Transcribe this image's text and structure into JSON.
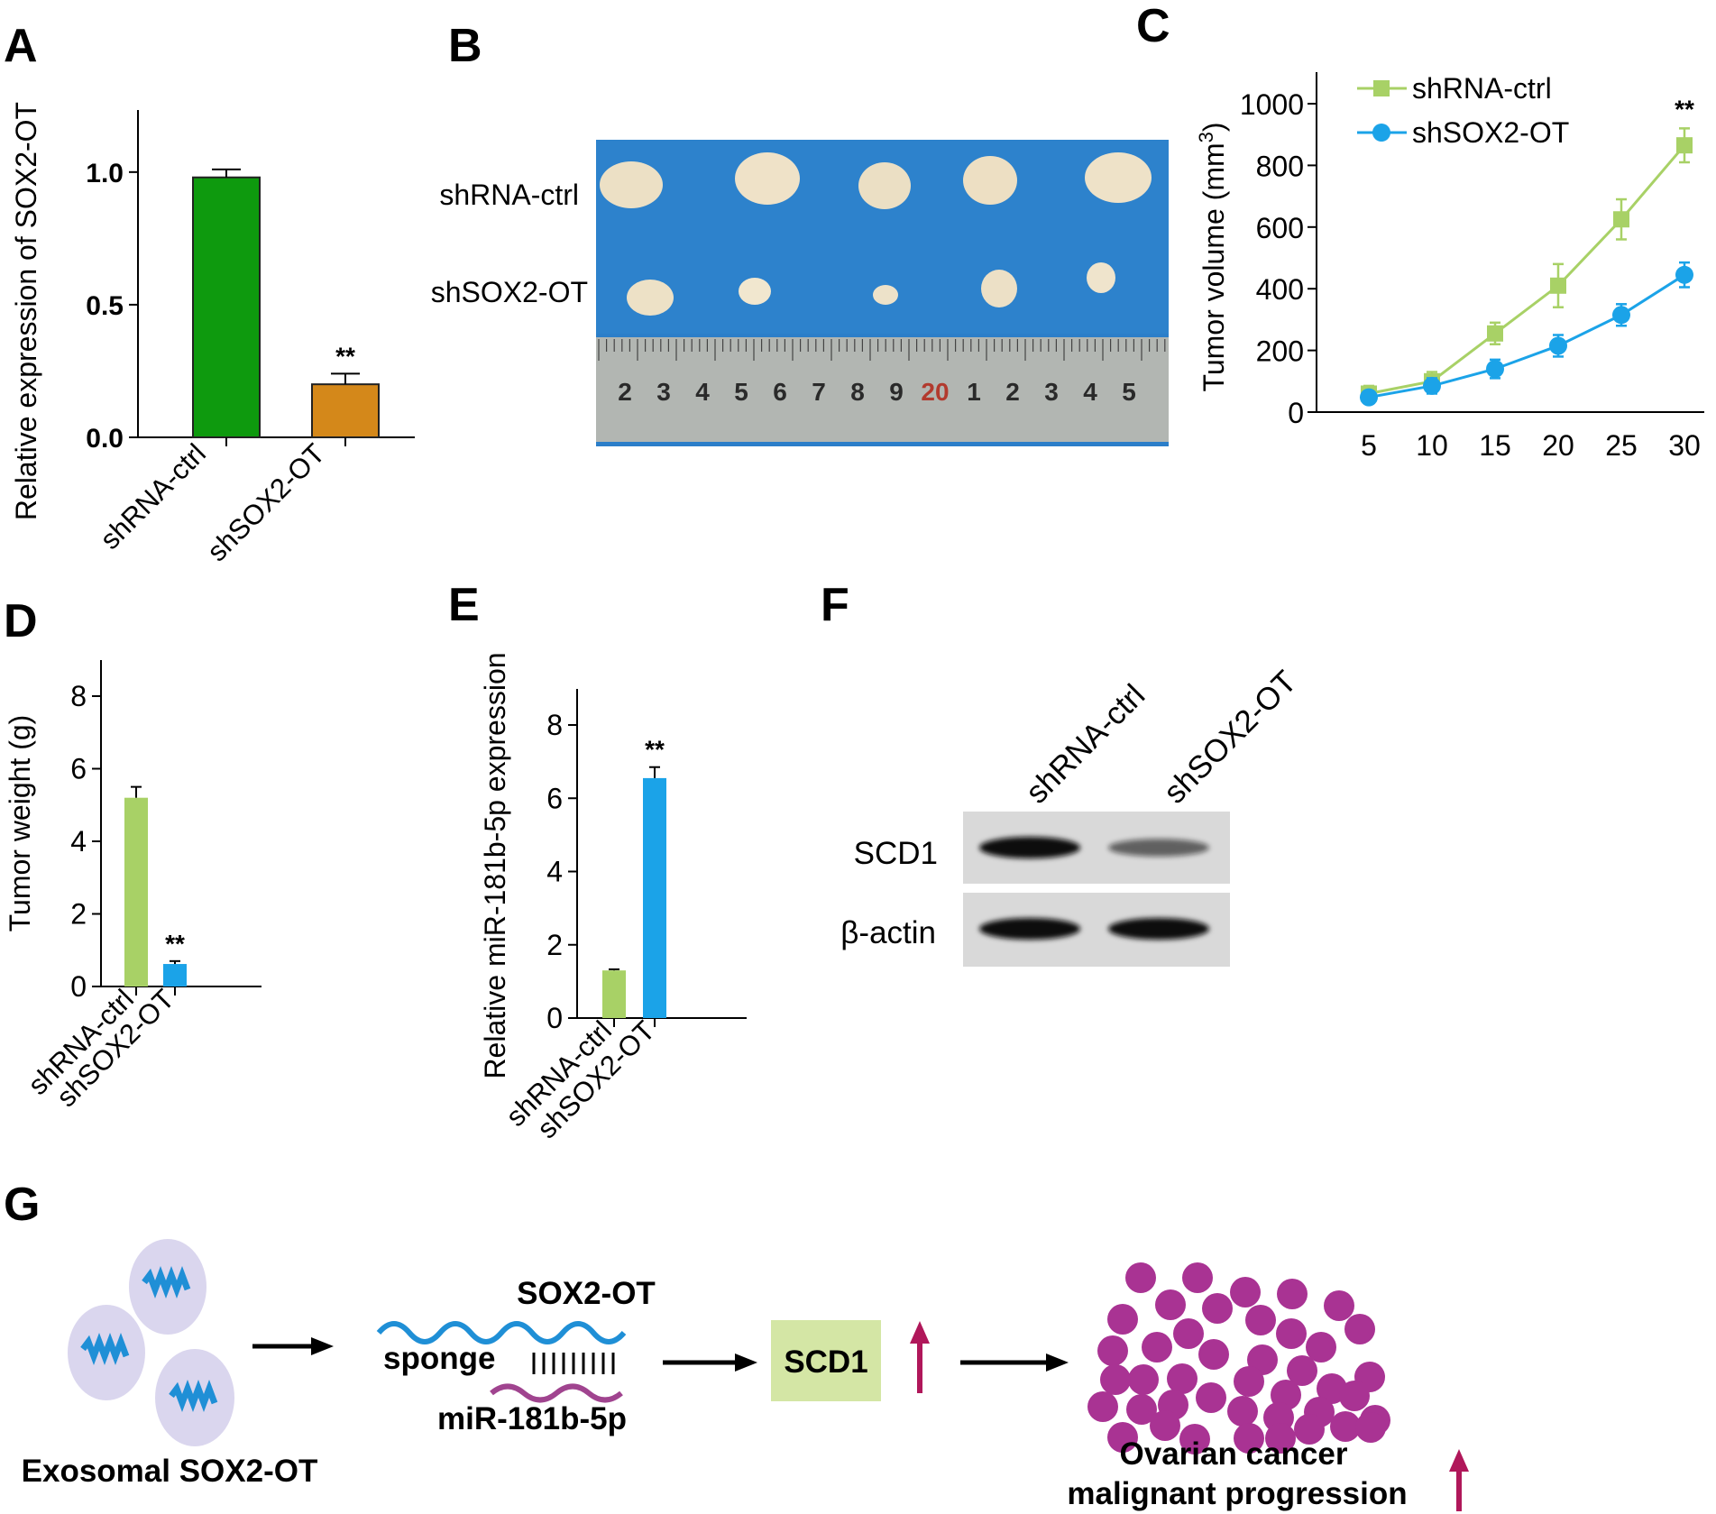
{
  "panels": {
    "A": "A",
    "B": "B",
    "C": "C",
    "D": "D",
    "E": "E",
    "F": "F",
    "G": "G"
  },
  "panel_b": {
    "rows": [
      "shRNA-ctrl",
      "shSOX2-OT"
    ],
    "ruler_marks": [
      "2",
      "3",
      "4",
      "5",
      "6",
      "7",
      "8",
      "9",
      "20",
      "1",
      "2",
      "3",
      "4",
      "5"
    ]
  },
  "panel_f": {
    "lanes": [
      "shRNA-ctrl",
      "shSOX2-OT"
    ],
    "rows": [
      "SCD1",
      "β-actin"
    ],
    "band_intensity": {
      "SCD1": [
        1.0,
        0.45
      ],
      "β-actin": [
        1.0,
        1.0
      ]
    }
  },
  "panel_g": {
    "source": "Exosomal SOX2-OT",
    "lnc": "SOX2-OT",
    "sponge": "sponge",
    "mirna": "miR-181b-5p",
    "target": "SCD1",
    "outcome_line1": "Ovarian cancer",
    "outcome_line2": "malignant  progression",
    "colors": {
      "wave": "#1f8fd6",
      "mirna": "#a0448f",
      "box": "#d4e6a5",
      "arrow_up": "#b0175a",
      "cell": "#a93393",
      "vesicle": "#dad6ee"
    }
  },
  "chart_data": [
    {
      "id": "A",
      "type": "bar",
      "categories": [
        "shRNA-ctrl",
        "shSOX2-OT"
      ],
      "values": [
        0.98,
        0.2
      ],
      "errors": [
        0.03,
        0.04
      ],
      "colors": [
        "#0e9a0e",
        "#d4881a"
      ],
      "significance": [
        "",
        "**"
      ],
      "ylabel": "Relative expression of SOX2-OT",
      "yticks": [
        "0.0",
        "0.5",
        "1.0"
      ],
      "ylim": [
        0,
        1.2
      ]
    },
    {
      "id": "C",
      "type": "line",
      "x": [
        5,
        10,
        15,
        20,
        25,
        30
      ],
      "series": [
        {
          "name": "shRNA-ctrl",
          "values": [
            60,
            100,
            255,
            410,
            625,
            865
          ],
          "errors": [
            25,
            30,
            35,
            70,
            65,
            55
          ],
          "color": "#a8d166",
          "marker": "square"
        },
        {
          "name": "shSOX2-OT",
          "values": [
            48,
            85,
            140,
            215,
            315,
            445
          ],
          "errors": [
            20,
            25,
            30,
            35,
            35,
            40
          ],
          "color": "#1ba3e8",
          "marker": "circle"
        }
      ],
      "significance": "**",
      "ylabel": "Tumor volume (mm",
      "ylabel_sup": "3",
      "ylabel_end": ")",
      "yticks": [
        "0",
        "200",
        "400",
        "600",
        "800",
        "1000"
      ],
      "xticks": [
        "5",
        "10",
        "15",
        "20",
        "25",
        "30"
      ],
      "ylim": [
        0,
        1000
      ],
      "xlim": [
        5,
        30
      ],
      "legend": "top-left"
    },
    {
      "id": "D",
      "type": "bar",
      "categories": [
        "shRNA-ctrl",
        "shSOX2-OT"
      ],
      "values": [
        5.2,
        0.62
      ],
      "errors": [
        0.3,
        0.08
      ],
      "colors": [
        "#a8d166",
        "#1ba3e8"
      ],
      "significance": [
        "",
        "**"
      ],
      "ylabel": "Tumor weight (g)",
      "yticks": [
        "0",
        "2",
        "4",
        "6",
        "8"
      ],
      "ylim": [
        0,
        8
      ]
    },
    {
      "id": "E",
      "type": "bar",
      "categories": [
        "shRNA-ctrl",
        "shSOX2-OT"
      ],
      "values": [
        1.3,
        6.55
      ],
      "errors": [
        0.03,
        0.3
      ],
      "colors": [
        "#a8d166",
        "#1ba3e8"
      ],
      "significance": [
        "",
        "**"
      ],
      "ylabel": "Relative miR-181b-5p expression",
      "yticks": [
        "0",
        "2",
        "4",
        "6",
        "8"
      ],
      "ylim": [
        0,
        8
      ]
    }
  ]
}
